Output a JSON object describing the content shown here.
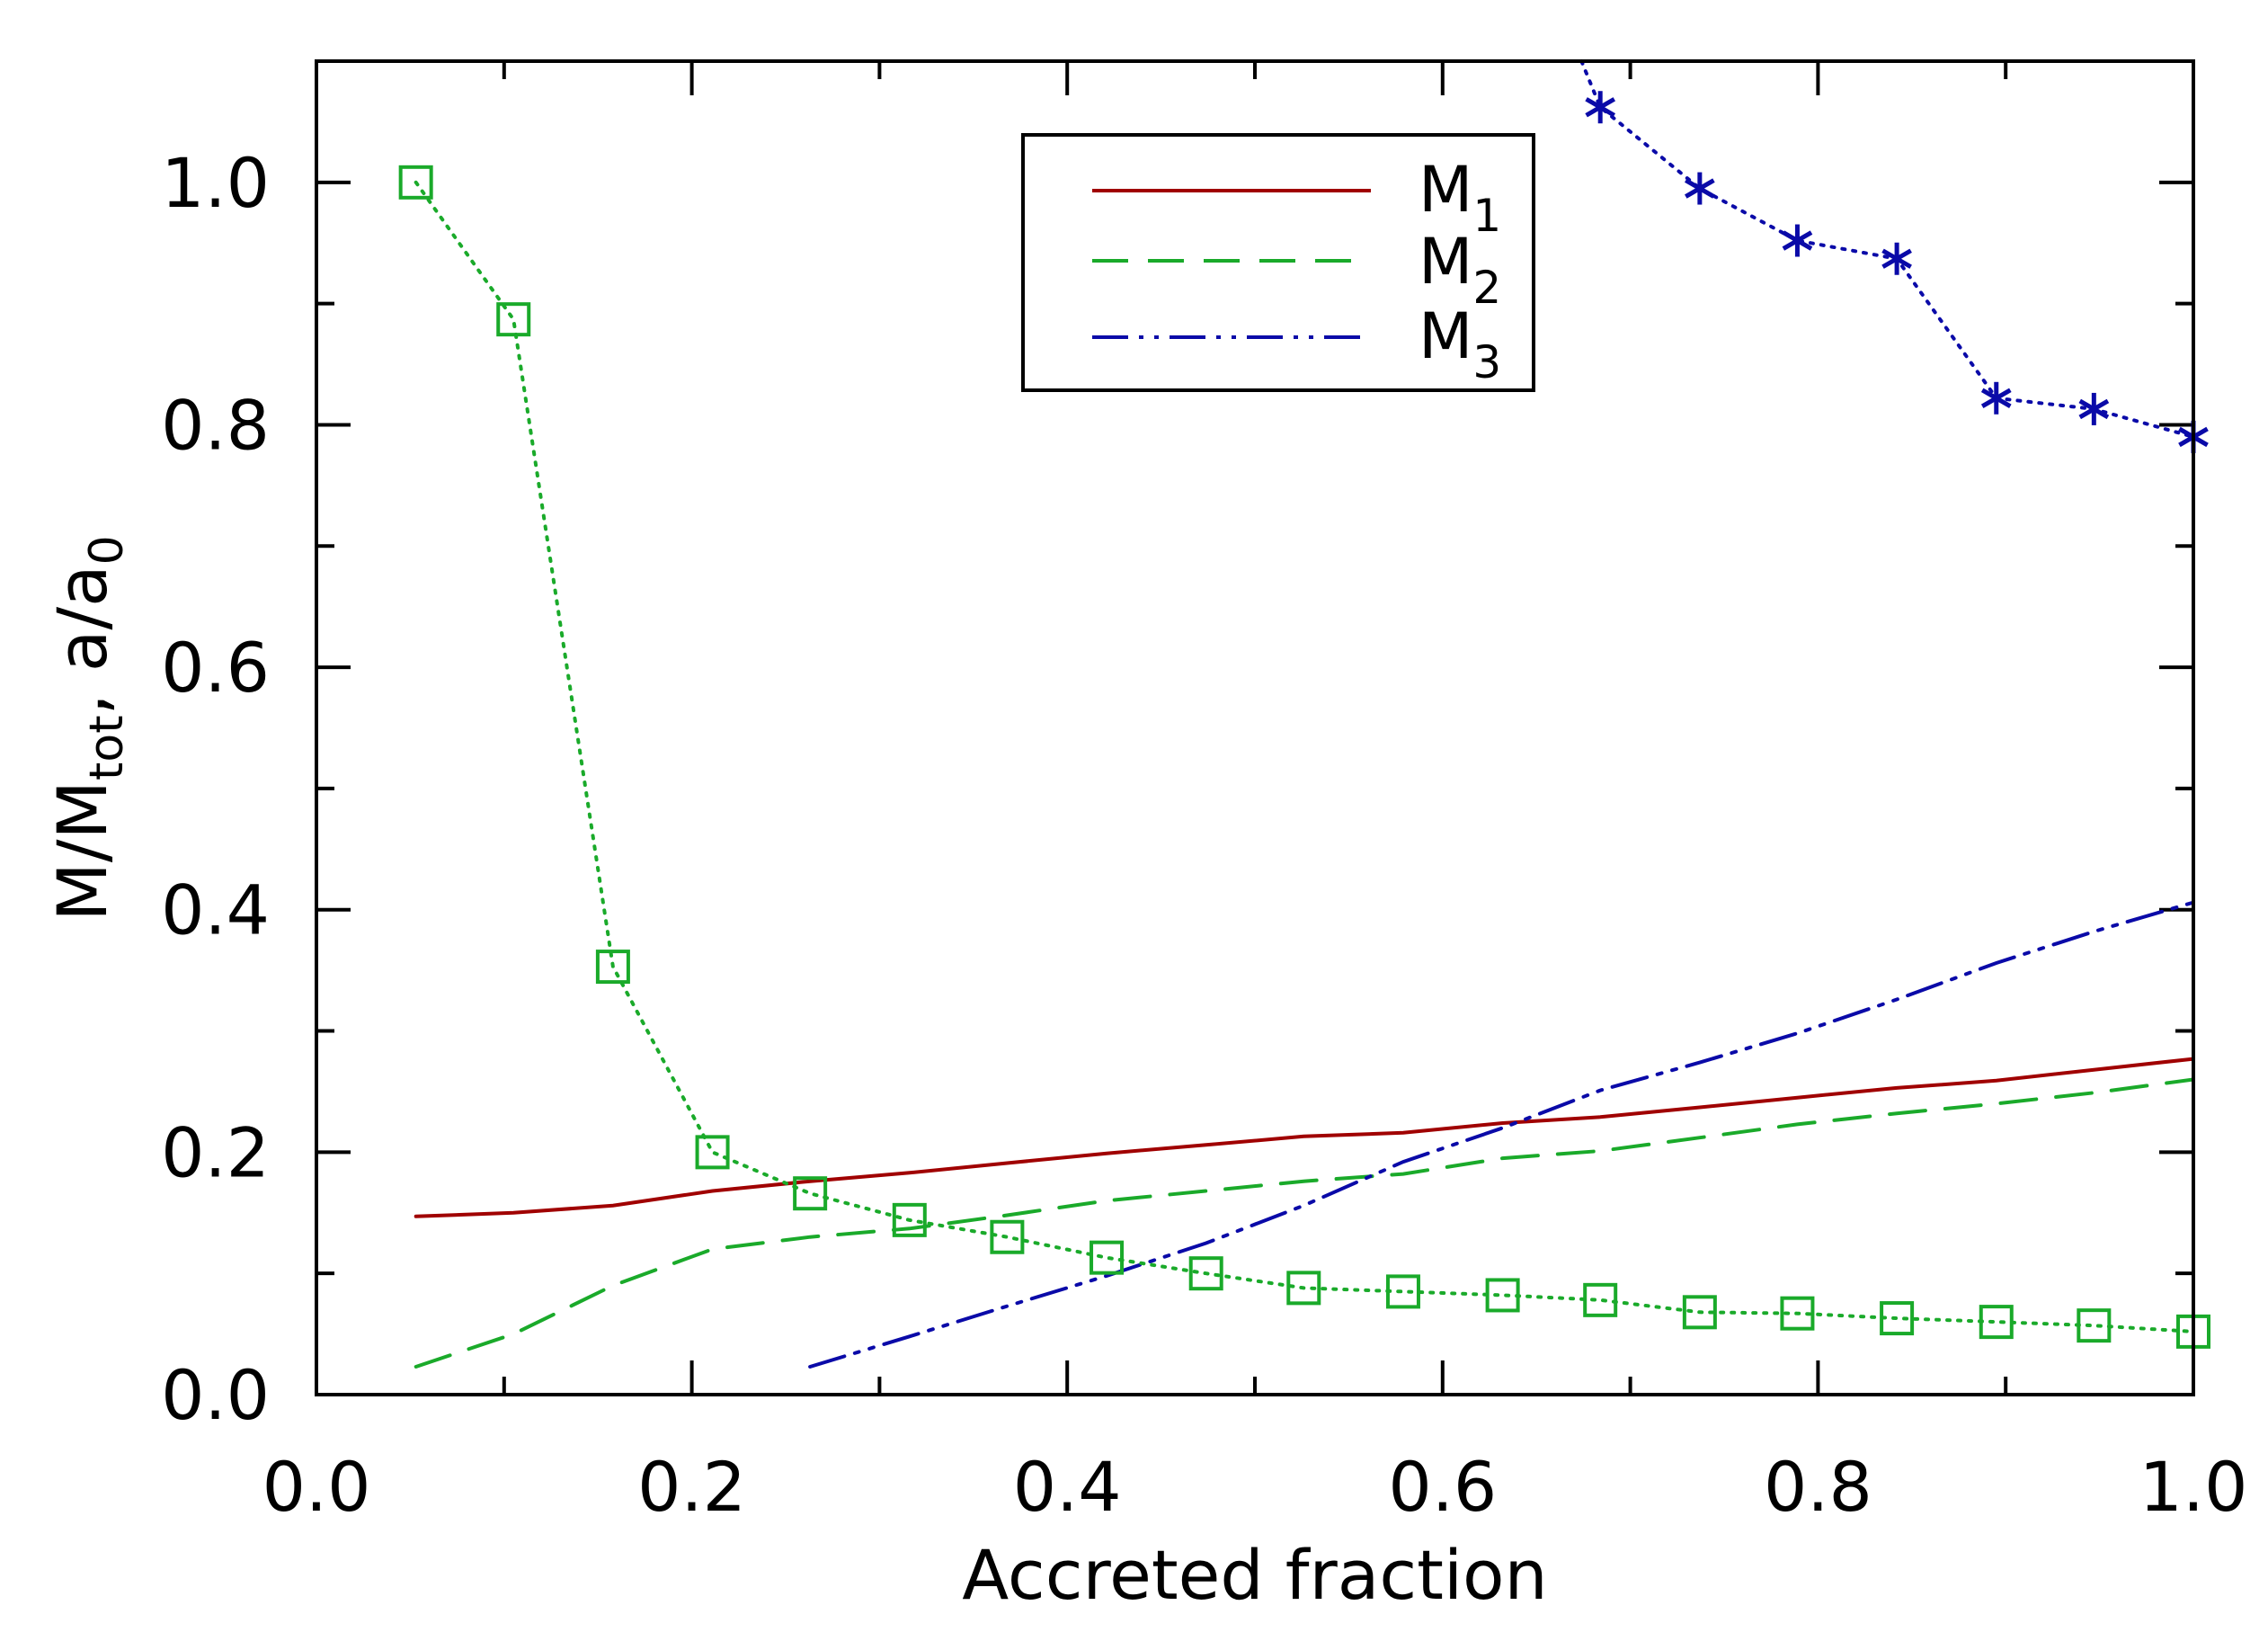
{
  "chart_data": {
    "type": "line",
    "xlabel": "Accreted fraction",
    "ylabel": {
      "main": "M/M",
      "sub": "tot",
      "mid": ", a/a",
      "sub2": "0"
    },
    "xlim": [
      0.0,
      1.0
    ],
    "ylim": [
      0.0,
      1.1
    ],
    "xticks": [
      "0.0",
      "0.2",
      "0.4",
      "0.6",
      "0.8",
      "1.0"
    ],
    "yticks": [
      "0.0",
      "0.2",
      "0.4",
      "0.6",
      "0.8",
      "1.0"
    ],
    "legend_position": "top-center",
    "series": [
      {
        "name": "M1",
        "label": "M",
        "sub": "1",
        "color": "#a00000",
        "style": "solid",
        "x": [
          0.053,
          0.105,
          0.158,
          0.211,
          0.263,
          0.316,
          0.368,
          0.421,
          0.474,
          0.526,
          0.579,
          0.632,
          0.684,
          0.737,
          0.789,
          0.842,
          0.895,
          0.947,
          1.0
        ],
        "y": [
          0.147,
          0.15,
          0.156,
          0.168,
          0.176,
          0.183,
          0.191,
          0.199,
          0.206,
          0.213,
          0.216,
          0.224,
          0.229,
          0.237,
          0.245,
          0.253,
          0.259,
          0.268,
          0.277
        ]
      },
      {
        "name": "M2",
        "label": "M",
        "sub": "2",
        "color": "#1aaa2a",
        "style": "dashed",
        "x": [
          0.053,
          0.105,
          0.158,
          0.211,
          0.263,
          0.316,
          0.368,
          0.421,
          0.474,
          0.526,
          0.579,
          0.632,
          0.684,
          0.737,
          0.789,
          0.842,
          0.895,
          0.947,
          1.0
        ],
        "y": [
          0.023,
          0.05,
          0.09,
          0.12,
          0.13,
          0.137,
          0.148,
          0.16,
          0.168,
          0.176,
          0.182,
          0.195,
          0.201,
          0.212,
          0.223,
          0.232,
          0.24,
          0.249,
          0.26
        ]
      },
      {
        "name": "M3",
        "label": "M",
        "sub": "3",
        "color": "#0a0aa8",
        "style": "dash-dot-dot",
        "x": [
          0.263,
          0.316,
          0.368,
          0.421,
          0.474,
          0.526,
          0.579,
          0.632,
          0.684,
          0.737,
          0.789,
          0.842,
          0.895,
          0.947,
          1.0
        ],
        "y": [
          0.023,
          0.048,
          0.073,
          0.098,
          0.125,
          0.156,
          0.192,
          0.22,
          0.251,
          0.274,
          0.298,
          0.326,
          0.356,
          0.382,
          0.406
        ]
      },
      {
        "name": "a/a0 (green squares)",
        "color": "#1aaa2a",
        "style": "dotted",
        "marker": "square",
        "x": [
          0.053,
          0.105,
          0.158,
          0.211,
          0.263,
          0.316,
          0.368,
          0.421,
          0.474,
          0.526,
          0.579,
          0.632,
          0.684,
          0.737,
          0.789,
          0.842,
          0.895,
          0.947,
          1.0
        ],
        "y": [
          1.0,
          0.887,
          0.353,
          0.2,
          0.166,
          0.144,
          0.13,
          0.113,
          0.1,
          0.088,
          0.085,
          0.082,
          0.078,
          0.068,
          0.067,
          0.063,
          0.06,
          0.057,
          0.052
        ]
      },
      {
        "name": "a/a0 (blue asterisks)",
        "color": "#0a0aa8",
        "style": "dotted",
        "marker": "asterisk",
        "x": [
          0.684,
          0.737,
          0.789,
          0.842,
          0.895,
          0.947,
          1.0
        ],
        "y": [
          1.062,
          0.995,
          0.952,
          0.937,
          0.822,
          0.813,
          0.79
        ],
        "entry": {
          "x": 0.674,
          "y": 1.1
        }
      }
    ]
  }
}
